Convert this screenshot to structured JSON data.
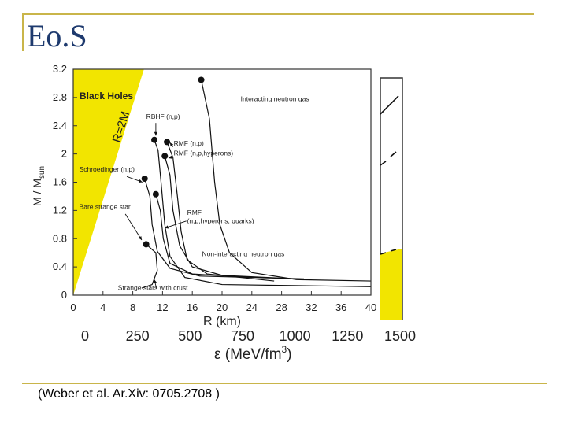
{
  "slide": {
    "title": "Eo.S",
    "citation": "(Weber et al. Ar.Xiv: 0705.2708 )"
  },
  "colors": {
    "black_hole_region": "#f2e500",
    "frame": "#c9b54a",
    "title": "#1e3a6e"
  },
  "chart_data": [
    {
      "type": "line",
      "xlabel": "R  (km)",
      "ylabel_main": "M / M",
      "ylabel_sub": "sun",
      "xlim": [
        0,
        40
      ],
      "ylim": [
        0,
        3.2
      ],
      "xticks": [
        0,
        4,
        8,
        12,
        16,
        20,
        24,
        28,
        32,
        36,
        40
      ],
      "yticks": [
        0,
        0.4,
        0.8,
        1.2,
        1.6,
        2,
        2.4,
        2.8,
        3.2
      ],
      "regions": {
        "black_holes": "Black Holes",
        "horizon": "R=2M"
      },
      "series": [
        {
          "name": "Interacting neutron gas",
          "max": [
            17.2,
            3.05
          ],
          "points": [
            [
              40,
              0.2
            ],
            [
              30,
              0.22
            ],
            [
              24,
              0.32
            ],
            [
              21,
              0.6
            ],
            [
              19.7,
              1.0
            ],
            [
              19,
              1.6
            ],
            [
              18.3,
              2.5
            ],
            [
              17.2,
              3.05
            ]
          ]
        },
        {
          "name": "RBHF (n,p)",
          "max": [
            10.9,
            2.2
          ],
          "points": [
            [
              40,
              0.12
            ],
            [
              20,
              0.15
            ],
            [
              15,
              0.25
            ],
            [
              13,
              0.55
            ],
            [
              12.3,
              1.0
            ],
            [
              11.8,
              1.6
            ],
            [
              11.4,
              2.05
            ],
            [
              10.9,
              2.2
            ]
          ]
        },
        {
          "name": "RMF (n,p)",
          "max": [
            12.6,
            2.17
          ],
          "points": [
            [
              27,
              0.2
            ],
            [
              18,
              0.3
            ],
            [
              15.3,
              0.5
            ],
            [
              14.5,
              0.9
            ],
            [
              14,
              1.4
            ],
            [
              13.4,
              1.95
            ],
            [
              12.6,
              2.17
            ]
          ]
        },
        {
          "name": "RMF (n,p,hyperons)",
          "max": [
            12.3,
            1.97
          ],
          "points": [
            [
              32,
              0.22
            ],
            [
              20,
              0.28
            ],
            [
              16,
              0.4
            ],
            [
              14.3,
              0.7
            ],
            [
              13.4,
              1.2
            ],
            [
              13,
              1.7
            ],
            [
              12.3,
              1.97
            ]
          ]
        },
        {
          "name": "Schroedinger (n,p)",
          "max": [
            9.6,
            1.65
          ],
          "points": [
            [
              31,
              0.23
            ],
            [
              17,
              0.27
            ],
            [
              13,
              0.38
            ],
            [
              11.3,
              0.62
            ],
            [
              10.6,
              1.0
            ],
            [
              10.3,
              1.4
            ],
            [
              9.6,
              1.65
            ]
          ]
        },
        {
          "name": "RMF (n,p,hyperons, quarks)",
          "max": [
            11.1,
            1.43
          ],
          "points": [
            [
              24,
              0.25
            ],
            [
              16,
              0.3
            ],
            [
              13,
              0.45
            ],
            [
              12.1,
              0.8
            ],
            [
              11.7,
              1.2
            ],
            [
              11.1,
              1.43
            ]
          ]
        },
        {
          "name": "Strange star with crust",
          "max": [
            9.8,
            0.72
          ],
          "points": [
            [
              9.2,
              0.1
            ],
            [
              10.6,
              0.15
            ],
            [
              11.3,
              0.35
            ],
            [
              11.1,
              0.6
            ],
            [
              9.8,
              0.72
            ]
          ]
        }
      ],
      "annotations": [
        {
          "text": "Interacting neutron gas",
          "x": 22.5,
          "y": 2.75
        },
        {
          "text": "RBHF (n,p)",
          "x": 9.8,
          "y": 2.5
        },
        {
          "text": "RMF (n,p)",
          "x": 13.5,
          "y": 2.12
        },
        {
          "text": "RMF (n,p,hyperons)",
          "x": 13.5,
          "y": 1.98
        },
        {
          "text": "Schroedinger (n,p)",
          "x": 0.8,
          "y": 1.75
        },
        {
          "text": "Bare strange star",
          "x": 0.8,
          "y": 1.22
        },
        {
          "text": "RMF",
          "x": 15.3,
          "y": 1.14
        },
        {
          "text": "(n,p,hyperons, quarks)",
          "x": 15.3,
          "y": 1.02
        },
        {
          "text": "Non-interacting neutron gas",
          "x": 17.3,
          "y": 0.55
        },
        {
          "text": "Strange stars with crust",
          "x": 6.0,
          "y": 0.07
        }
      ]
    },
    {
      "type": "line",
      "partial": true,
      "xlabel": "ε (MeV/fm",
      "xlabel_sup": "3",
      "xlabel_end": ")",
      "xlim": [
        0,
        1500
      ],
      "xticks": [
        0,
        250,
        500,
        750,
        1000,
        1250,
        1500
      ]
    }
  ]
}
